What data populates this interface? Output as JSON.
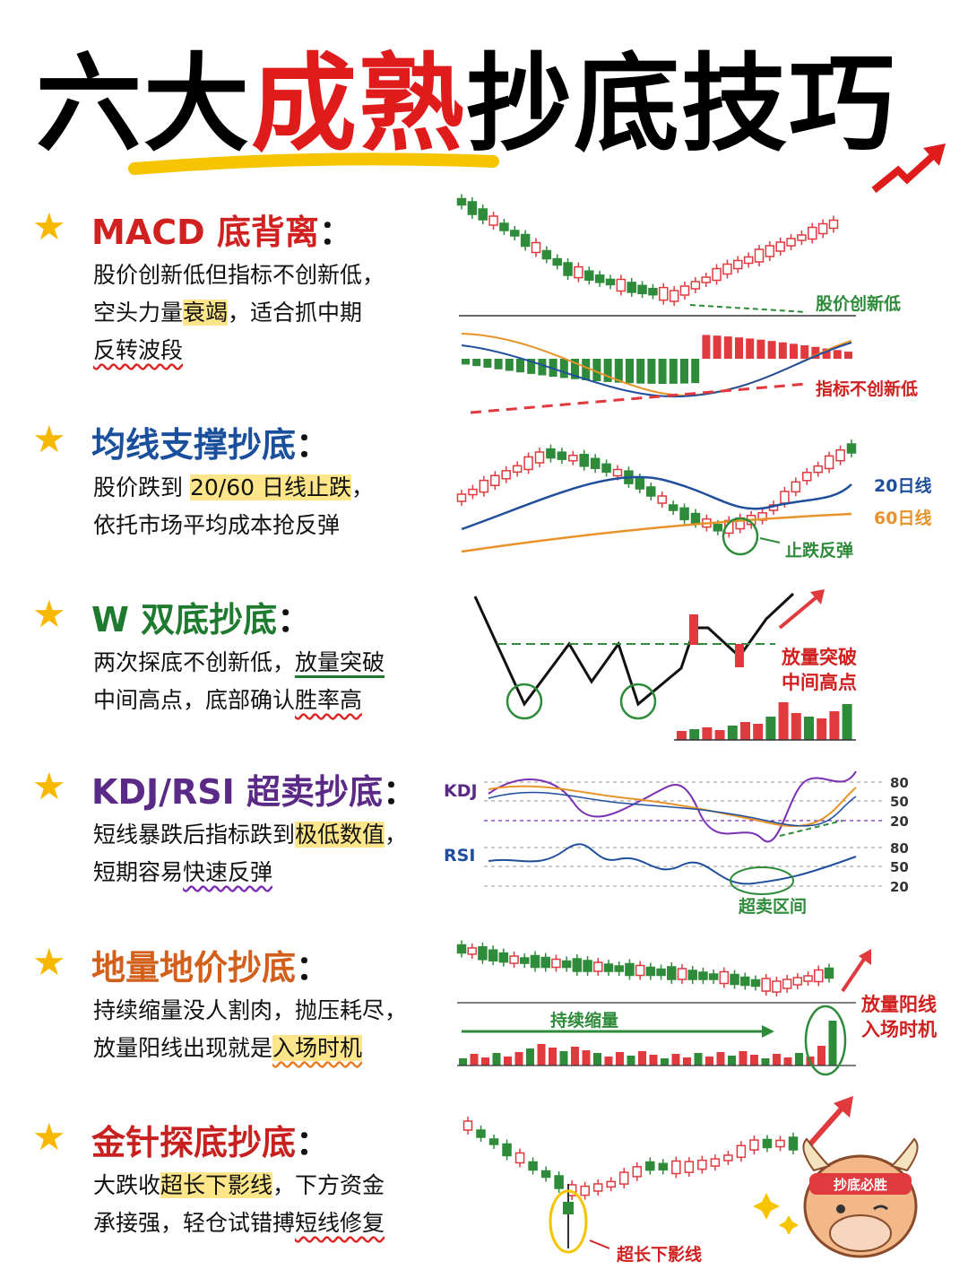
{
  "title": {
    "part1": "六大",
    "part2": "成熟",
    "part3": "抄底技巧"
  },
  "sections": [
    {
      "heading": "MACD 底背离",
      "colon": "：",
      "lines": [
        [
          "股价创新低但指标不创新低，"
        ],
        [
          "空头力量",
          "衰竭",
          "，适合抓中期"
        ],
        [
          "反转波段"
        ]
      ],
      "labels": [
        "股价创新低",
        "指标不创新低"
      ]
    },
    {
      "heading": "均线支撑抄底",
      "colon": "：",
      "lines": [
        [
          "股价跌到 ",
          "20/60 日线止跌",
          "，"
        ],
        [
          "依托市场平均成本抢反弹"
        ]
      ],
      "labels": [
        "20日线",
        "60日线",
        "止跌反弹"
      ]
    },
    {
      "heading": "W 双底抄底",
      "colon": "：",
      "lines": [
        [
          "两次探底不创新低，",
          "放量突破"
        ],
        [
          "中间高点，底部确认",
          "胜率高"
        ]
      ],
      "labels": [
        "放量突破",
        "中间高点"
      ]
    },
    {
      "heading": "KDJ/RSI 超卖抄底",
      "colon": "：",
      "lines": [
        [
          "短线暴跌后指标跌到",
          "极低数值",
          "，"
        ],
        [
          "短期容易",
          "快速反弹"
        ]
      ],
      "labels": [
        "KDJ",
        "RSI",
        "超卖区间"
      ],
      "levels": [
        80,
        50,
        20
      ]
    },
    {
      "heading": "地量地价抄底",
      "colon": "：",
      "lines": [
        [
          "持续缩量没人割肉，抛压耗尽，"
        ],
        [
          "放量阳线出现就是",
          "入场时机"
        ]
      ],
      "labels": [
        "持续缩量",
        "放量阳线",
        "入场时机"
      ]
    },
    {
      "heading": "金针探底抄底",
      "colon": "：",
      "lines": [
        [
          "大跌收",
          "超长下影线",
          "，下方资金"
        ],
        [
          "承接强，轻仓试错搏",
          "短线修复"
        ]
      ],
      "labels": [
        "超长下影线"
      ]
    }
  ],
  "badge": "抄底必胜"
}
